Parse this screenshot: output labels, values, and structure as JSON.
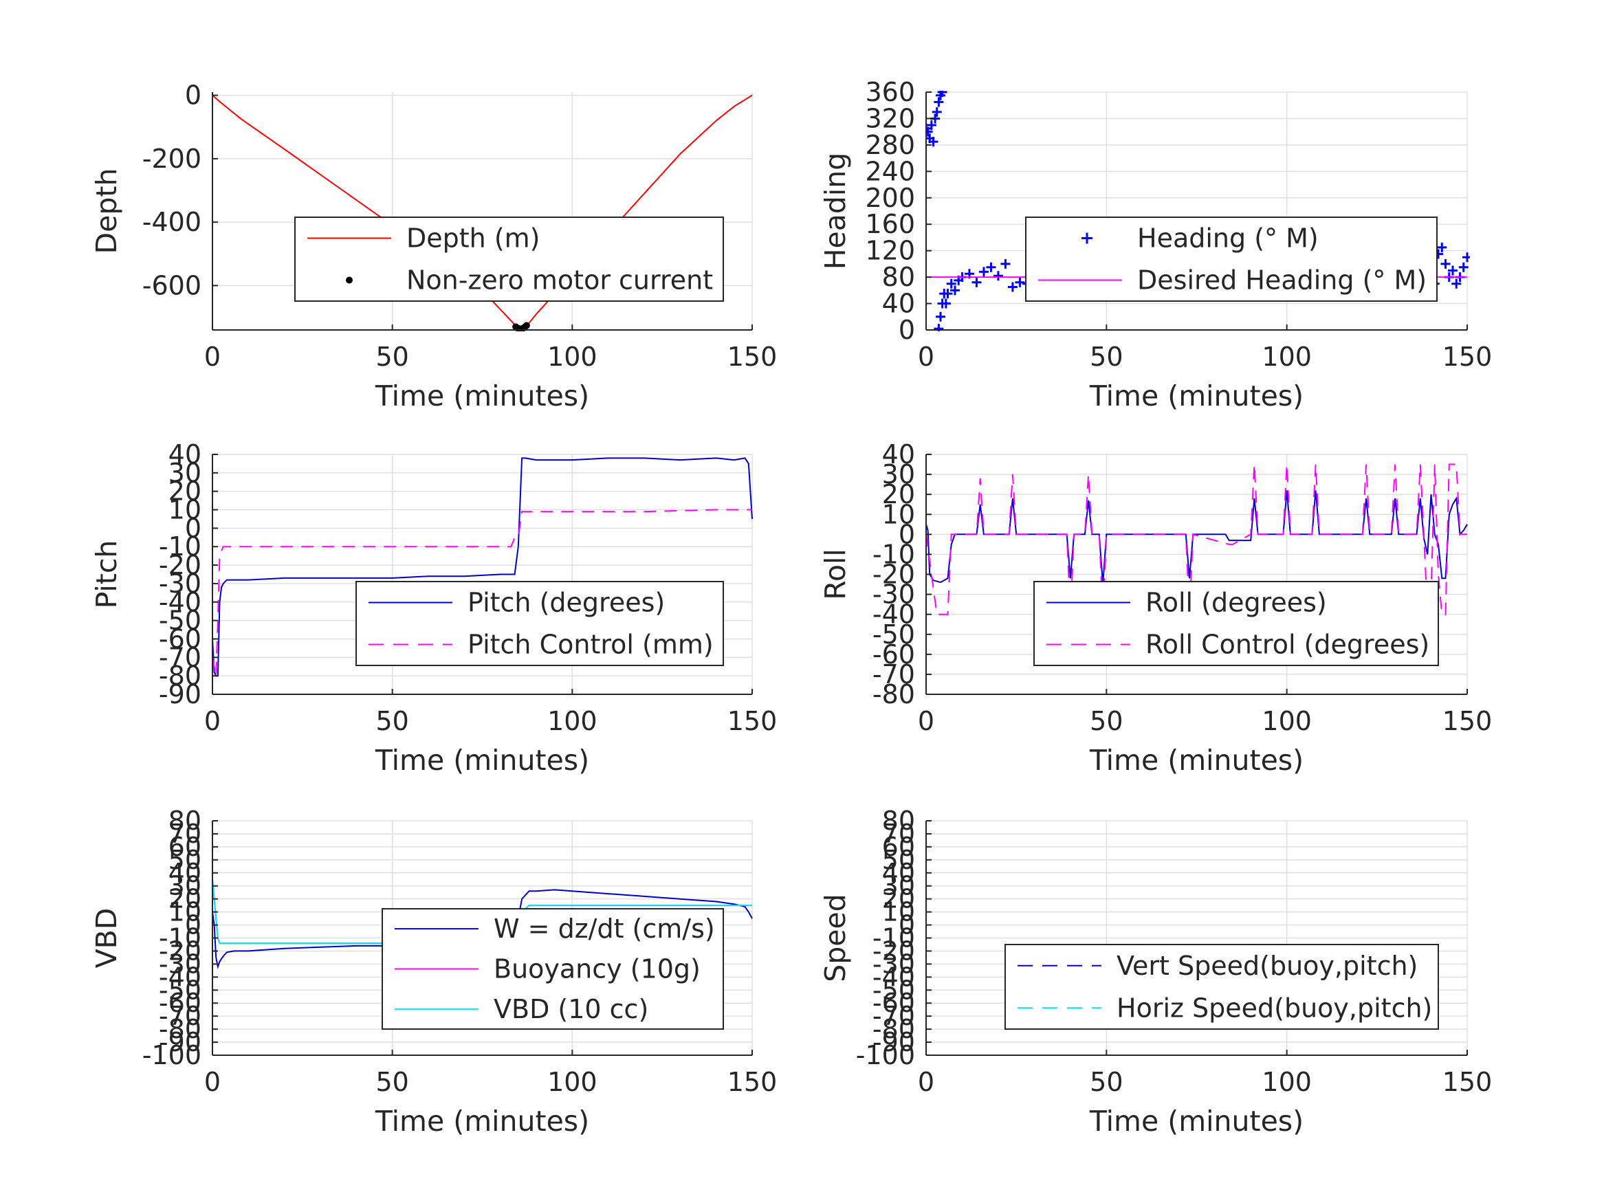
{
  "colors": {
    "depth": "#ff0000",
    "motor": "#000000",
    "heading": "#0000ff",
    "desired_heading": "#ff00ff",
    "pitch": "#0000cc",
    "pitch_control": "#ff00ff",
    "roll": "#0000cc",
    "roll_control": "#ff00ff",
    "w": "#0000cc",
    "buoyancy": "#ff00ff",
    "vbd": "#00e5ff",
    "vert_speed": "#0000cc",
    "horiz_speed": "#00e5ff",
    "grid": "#e0e0e0",
    "axis": "#262626"
  },
  "chart_data": [
    {
      "type": "line",
      "xlabel": "Time (minutes)",
      "ylabel": "Depth",
      "xlim": [
        0,
        150
      ],
      "ylim": [
        -740,
        10
      ],
      "xticks": [
        0,
        50,
        100,
        150
      ],
      "xtick_labels": [
        "0",
        "50",
        "100",
        "150"
      ],
      "yticks": [
        0,
        -200,
        -400,
        -600
      ],
      "ytick_labels": [
        "0",
        "-200",
        "-400",
        "-600"
      ],
      "grid": true,
      "legend_placement": "center",
      "series": [
        {
          "name": "Depth (m)",
          "style": "solid",
          "color_key": "depth",
          "x": [
            0,
            2,
            8,
            20,
            40,
            60,
            75,
            85,
            87,
            90,
            100,
            110,
            120,
            130,
            140,
            145,
            150
          ],
          "y": [
            0,
            -20,
            -75,
            -170,
            -330,
            -490,
            -615,
            -735,
            -732,
            -690,
            -565,
            -435,
            -310,
            -185,
            -80,
            -35,
            0
          ]
        },
        {
          "name": "Non-zero motor current",
          "style": "dots",
          "color_key": "motor",
          "x": [
            84.3,
            84.8,
            85.3,
            85.8,
            86.3,
            86.8,
            87.3
          ],
          "y": [
            -730,
            -734,
            -736,
            -737,
            -735,
            -731,
            -726
          ]
        }
      ]
    },
    {
      "type": "scatter",
      "xlabel": "Time (minutes)",
      "ylabel": "Heading",
      "xlim": [
        0,
        150
      ],
      "ylim": [
        0,
        360
      ],
      "xticks": [
        0,
        50,
        100,
        150
      ],
      "xtick_labels": [
        "0",
        "50",
        "100",
        "150"
      ],
      "yticks": [
        0,
        40,
        80,
        120,
        160,
        200,
        240,
        280,
        320,
        360
      ],
      "ytick_labels": [
        "0",
        "40",
        "80",
        "120",
        "160",
        "200",
        "240",
        "280",
        "320",
        "360"
      ],
      "grid": true,
      "legend_placement": "center",
      "series": [
        {
          "name": "Heading (° M)",
          "style": "plus",
          "color_key": "heading",
          "x": [
            0,
            0.5,
            1,
            1.5,
            2,
            2.5,
            3,
            3.5,
            4,
            4.5,
            3.5,
            4,
            4.5,
            5,
            5.5,
            6,
            7,
            8,
            9,
            10,
            12,
            14,
            16,
            18,
            20,
            22,
            24,
            26,
            28,
            30,
            32,
            34,
            36,
            38,
            40,
            42,
            43,
            44,
            46,
            48,
            50,
            52,
            54,
            56,
            58,
            60,
            62,
            64,
            66,
            68,
            70,
            72,
            74,
            76,
            78,
            80,
            82,
            84,
            86,
            88,
            90,
            92,
            94,
            96,
            98,
            100,
            102,
            104,
            106,
            108,
            110,
            112,
            114,
            116,
            118,
            120,
            122,
            124,
            126,
            128,
            130,
            132,
            134,
            136,
            138,
            140,
            141,
            142,
            143,
            144,
            145,
            146,
            147,
            148,
            149,
            150
          ],
          "y": [
            305,
            300,
            290,
            310,
            285,
            320,
            330,
            345,
            355,
            360,
            2,
            20,
            40,
            55,
            40,
            55,
            70,
            60,
            75,
            80,
            85,
            72,
            88,
            95,
            82,
            100,
            65,
            72,
            70,
            75,
            65,
            70,
            78,
            62,
            58,
            70,
            95,
            85,
            60,
            72,
            90,
            82,
            75,
            68,
            85,
            78,
            70,
            82,
            75,
            80,
            68,
            85,
            72,
            75,
            88,
            70,
            68,
            78,
            100,
            62,
            85,
            72,
            80,
            75,
            70,
            65,
            78,
            82,
            70,
            58,
            75,
            82,
            72,
            65,
            80,
            55,
            70,
            85,
            60,
            50,
            72,
            80,
            68,
            62,
            75,
            80,
            70,
            115,
            125,
            100,
            80,
            90,
            70,
            80,
            95,
            110
          ]
        },
        {
          "name": "Desired Heading (° M)",
          "style": "solid",
          "color_key": "desired_heading",
          "x": [
            0,
            150
          ],
          "y": [
            80,
            80
          ]
        }
      ]
    },
    {
      "type": "line",
      "xlabel": "Time (minutes)",
      "ylabel": "Pitch",
      "xlim": [
        0,
        150
      ],
      "ylim": [
        -90,
        40
      ],
      "xticks": [
        0,
        50,
        100,
        150
      ],
      "xtick_labels": [
        "0",
        "50",
        "100",
        "150"
      ],
      "yticks": [
        40,
        30,
        20,
        10,
        0,
        -10,
        -20,
        -30,
        -40,
        -50,
        -60,
        -70,
        -80,
        -90
      ],
      "ytick_labels": [
        "40",
        "30",
        "20",
        "10",
        "0",
        "-10",
        "-20",
        "-30",
        "-40",
        "-50",
        "-60",
        "-70",
        "-80",
        "-90"
      ],
      "grid": true,
      "legend_placement": "lower-right",
      "series": [
        {
          "name": "Pitch (degrees)",
          "style": "solid",
          "color_key": "pitch",
          "x": [
            0,
            0.5,
            1,
            1.5,
            2,
            2.5,
            3,
            4,
            6,
            10,
            20,
            30,
            40,
            50,
            60,
            70,
            80,
            84,
            85,
            86,
            87,
            90,
            100,
            110,
            120,
            130,
            140,
            145,
            148,
            149,
            150
          ],
          "y": [
            -60,
            -78,
            -80,
            -80,
            -40,
            -32,
            -30,
            -28,
            -28,
            -28,
            -27,
            -27,
            -27,
            -27,
            -26,
            -26,
            -25,
            -25,
            -10,
            38,
            38,
            37,
            37,
            38,
            38,
            37,
            38,
            37,
            38,
            35,
            5
          ]
        },
        {
          "name": "Pitch Control (mm)",
          "style": "dashed",
          "color_key": "pitch_control",
          "x": [
            0,
            1,
            1.5,
            2,
            3,
            10,
            40,
            70,
            83,
            84,
            85,
            86,
            87,
            100,
            120,
            140,
            150
          ],
          "y": [
            -70,
            -80,
            -50,
            -15,
            -10,
            -10,
            -10,
            -10,
            -10,
            -5,
            -5,
            9,
            9,
            9,
            9,
            10,
            10
          ]
        }
      ]
    },
    {
      "type": "line",
      "xlabel": "Time (minutes)",
      "ylabel": "Roll",
      "xlim": [
        0,
        150
      ],
      "ylim": [
        -80,
        40
      ],
      "xticks": [
        0,
        50,
        100,
        150
      ],
      "xtick_labels": [
        "0",
        "50",
        "100",
        "150"
      ],
      "yticks": [
        40,
        30,
        20,
        10,
        0,
        -10,
        -20,
        -30,
        -40,
        -50,
        -60,
        -70,
        -80
      ],
      "ytick_labels": [
        "40",
        "30",
        "20",
        "10",
        "0",
        "-10",
        "-20",
        "-30",
        "-40",
        "-50",
        "-60",
        "-70",
        "-80"
      ],
      "grid": true,
      "legend_placement": "lower-right",
      "series": [
        {
          "name": "Roll (degrees)",
          "style": "solid",
          "color_key": "roll",
          "x": [
            0,
            0.5,
            1,
            2,
            4,
            6,
            7,
            8,
            14,
            15,
            16,
            23,
            24,
            25,
            39,
            40,
            41,
            44,
            45,
            46,
            48,
            49,
            50,
            72,
            73,
            74,
            83,
            84,
            90,
            91,
            92,
            99,
            100,
            101,
            107,
            108,
            109,
            121,
            122,
            123,
            129,
            130,
            131,
            136,
            137,
            138,
            139,
            140,
            141,
            142,
            143,
            144,
            145,
            146,
            147,
            148,
            149,
            150
          ],
          "y": [
            5,
            2,
            -20,
            -23,
            -24,
            -22,
            -5,
            0,
            0,
            15,
            0,
            0,
            18,
            0,
            0,
            -22,
            0,
            0,
            17,
            0,
            0,
            -25,
            0,
            0,
            -22,
            0,
            0,
            -3,
            -3,
            18,
            0,
            0,
            22,
            0,
            0,
            22,
            0,
            0,
            18,
            0,
            0,
            18,
            0,
            0,
            18,
            -2,
            -10,
            20,
            0,
            -5,
            -22,
            -22,
            10,
            15,
            18,
            0,
            2,
            5
          ]
        },
        {
          "name": "Roll Control (degrees)",
          "style": "dashed",
          "color_key": "roll_control",
          "x": [
            0,
            3,
            4,
            5,
            6,
            7,
            8,
            14,
            15,
            16,
            23,
            24,
            25,
            39,
            40,
            41,
            44,
            45,
            46,
            48,
            49,
            50,
            72,
            73,
            74,
            84,
            85,
            90,
            91,
            92,
            99,
            100,
            101,
            107,
            108,
            109,
            121,
            122,
            123,
            129,
            130,
            131,
            136,
            137,
            138,
            139,
            140,
            141,
            142,
            143,
            144,
            145,
            146,
            147,
            148,
            149,
            150
          ],
          "y": [
            0,
            -40,
            -40,
            -40,
            -40,
            0,
            0,
            0,
            28,
            0,
            0,
            30,
            0,
            0,
            -40,
            0,
            0,
            30,
            0,
            0,
            -40,
            0,
            0,
            -40,
            0,
            -5,
            -5,
            0,
            35,
            0,
            0,
            35,
            0,
            0,
            35,
            0,
            0,
            35,
            0,
            0,
            35,
            0,
            0,
            35,
            0,
            -40,
            -30,
            35,
            -20,
            -40,
            -40,
            35,
            35,
            35,
            0,
            0,
            0
          ]
        }
      ]
    },
    {
      "type": "line",
      "xlabel": "Time (minutes)",
      "ylabel": "VBD",
      "xlim": [
        0,
        150
      ],
      "ylim": [
        -100,
        80
      ],
      "xticks": [
        0,
        50,
        100,
        150
      ],
      "xtick_labels": [
        "0",
        "50",
        "100",
        "150"
      ],
      "yticks": [
        80,
        70,
        60,
        50,
        40,
        30,
        20,
        10,
        0,
        -10,
        -20,
        -30,
        -40,
        -50,
        -60,
        -70,
        -80,
        -90,
        -100
      ],
      "ytick_labels": [
        "80",
        "70",
        "60",
        "50",
        "40",
        "30",
        "20",
        "10",
        "0",
        "-10",
        "-20",
        "-30",
        "-40",
        "-50",
        "-60",
        "-70",
        "-80",
        "-90",
        "-100"
      ],
      "grid": true,
      "legend_placement": "center",
      "series": [
        {
          "name": "W = dz/dt (cm/s)",
          "style": "solid",
          "color_key": "w",
          "x": [
            0,
            0.5,
            1,
            1.5,
            2,
            3,
            4,
            6,
            10,
            20,
            30,
            40,
            50,
            60,
            70,
            80,
            84,
            85,
            86,
            88,
            90,
            95,
            100,
            110,
            120,
            130,
            140,
            145,
            148,
            149,
            150
          ],
          "y": [
            10,
            0,
            -25,
            -32,
            -28,
            -24,
            -21,
            -20,
            -20,
            -18,
            -17,
            -16,
            -16,
            -16,
            -15,
            -15,
            -14,
            5,
            20,
            26,
            26,
            27,
            26,
            24,
            22,
            20,
            18,
            16,
            14,
            10,
            5
          ]
        },
        {
          "name": "Buoyancy (10g)",
          "style": "solid",
          "color_key": "buoyancy",
          "x": [
            0,
            0.5,
            1,
            1.5,
            2,
            3,
            10,
            50,
            83,
            84,
            86,
            88,
            100,
            150
          ],
          "y": [
            35,
            20,
            5,
            -10,
            -14,
            -14,
            -14,
            -14,
            -14,
            -5,
            10,
            15,
            15,
            15
          ]
        },
        {
          "name": "VBD (10 cc)",
          "style": "solid",
          "color_key": "vbd",
          "x": [
            0,
            0.5,
            1,
            1.5,
            2,
            3,
            10,
            50,
            83,
            84,
            86,
            88,
            100,
            150
          ],
          "y": [
            35,
            20,
            5,
            -10,
            -14,
            -14,
            -14,
            -14,
            -14,
            -5,
            10,
            15,
            15,
            15
          ]
        }
      ]
    },
    {
      "type": "line",
      "xlabel": "Time (minutes)",
      "ylabel": "Speed",
      "xlim": [
        0,
        150
      ],
      "ylim": [
        -100,
        80
      ],
      "xticks": [
        0,
        50,
        100,
        150
      ],
      "xtick_labels": [
        "0",
        "50",
        "100",
        "150"
      ],
      "yticks": [
        80,
        70,
        60,
        50,
        40,
        30,
        20,
        10,
        0,
        -10,
        -20,
        -30,
        -40,
        -50,
        -60,
        -70,
        -80,
        -90,
        -100
      ],
      "ytick_labels": [
        "80",
        "70",
        "60",
        "50",
        "40",
        "30",
        "20",
        "10",
        "0",
        "-10",
        "-20",
        "-30",
        "-40",
        "-50",
        "-60",
        "-70",
        "-80",
        "-90",
        "-100"
      ],
      "grid": true,
      "legend_placement": "lower-right",
      "series": [
        {
          "name": "Vert Speed(buoy,pitch)",
          "style": "dashed",
          "color_key": "vert_speed",
          "x": [],
          "y": []
        },
        {
          "name": "Horiz Speed(buoy,pitch)",
          "style": "dashed",
          "color_key": "horiz_speed",
          "x": [],
          "y": []
        }
      ]
    }
  ]
}
